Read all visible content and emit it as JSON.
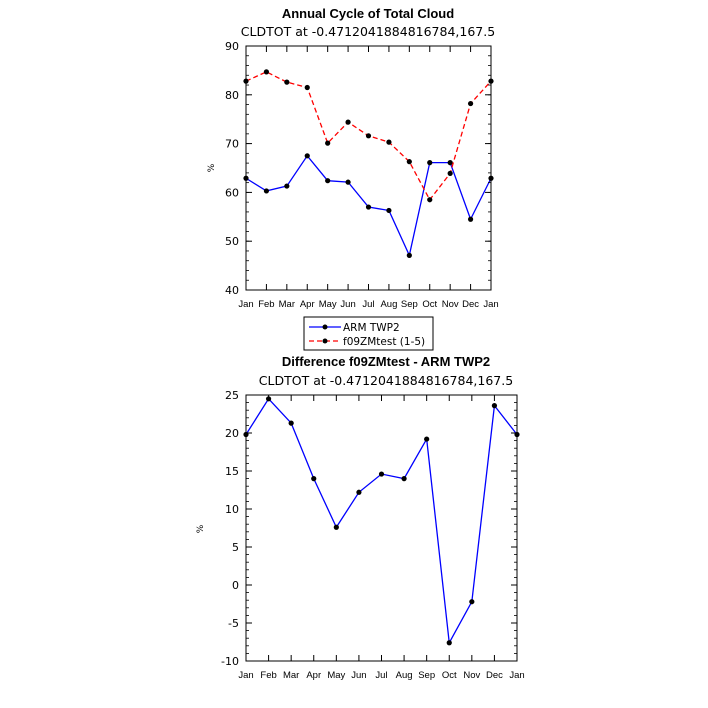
{
  "chart_data": [
    {
      "type": "line",
      "title": "Annual Cycle of Total Cloud",
      "subtitle": "CLDTOT at -0.4712041884816784,167.5",
      "ylabel": "%",
      "ylim": [
        40,
        90
      ],
      "yticks": [
        40,
        50,
        60,
        70,
        80,
        90
      ],
      "categories": [
        "Jan",
        "Feb",
        "Mar",
        "Apr",
        "May",
        "Jun",
        "Jul",
        "Aug",
        "Sep",
        "Oct",
        "Nov",
        "Dec",
        "Jan"
      ],
      "series": [
        {
          "name": "ARM TWP2",
          "color": "#0000ff",
          "dash": "solid",
          "values": [
            62.9,
            60.3,
            61.3,
            67.5,
            62.4,
            62.1,
            57.0,
            56.3,
            47.1,
            66.1,
            66.1,
            54.5,
            62.9
          ]
        },
        {
          "name": "f09ZMtest (1-5)",
          "color": "#ff0000",
          "dash": "dashed",
          "values": [
            82.8,
            84.7,
            82.6,
            81.5,
            70.1,
            74.4,
            71.6,
            70.3,
            66.3,
            58.5,
            63.9,
            78.2,
            82.8
          ]
        }
      ],
      "legend": {
        "placement": "below",
        "entries": [
          "ARM TWP2",
          "f09ZMtest (1-5)"
        ]
      }
    },
    {
      "type": "line",
      "title": "Difference f09ZMtest - ARM TWP2",
      "subtitle": "CLDTOT at -0.4712041884816784,167.5",
      "ylabel": "%",
      "ylim": [
        -10,
        25
      ],
      "yticks": [
        -10,
        -5,
        0,
        5,
        10,
        15,
        20,
        25
      ],
      "categories": [
        "Jan",
        "Feb",
        "Mar",
        "Apr",
        "May",
        "Jun",
        "Jul",
        "Aug",
        "Sep",
        "Oct",
        "Nov",
        "Dec",
        "Jan"
      ],
      "series": [
        {
          "color": "#0000ff",
          "dash": "solid",
          "values": [
            19.8,
            24.5,
            21.3,
            14.0,
            7.6,
            12.2,
            14.6,
            14.0,
            19.2,
            -7.6,
            -2.2,
            23.6,
            19.8
          ]
        }
      ]
    }
  ]
}
